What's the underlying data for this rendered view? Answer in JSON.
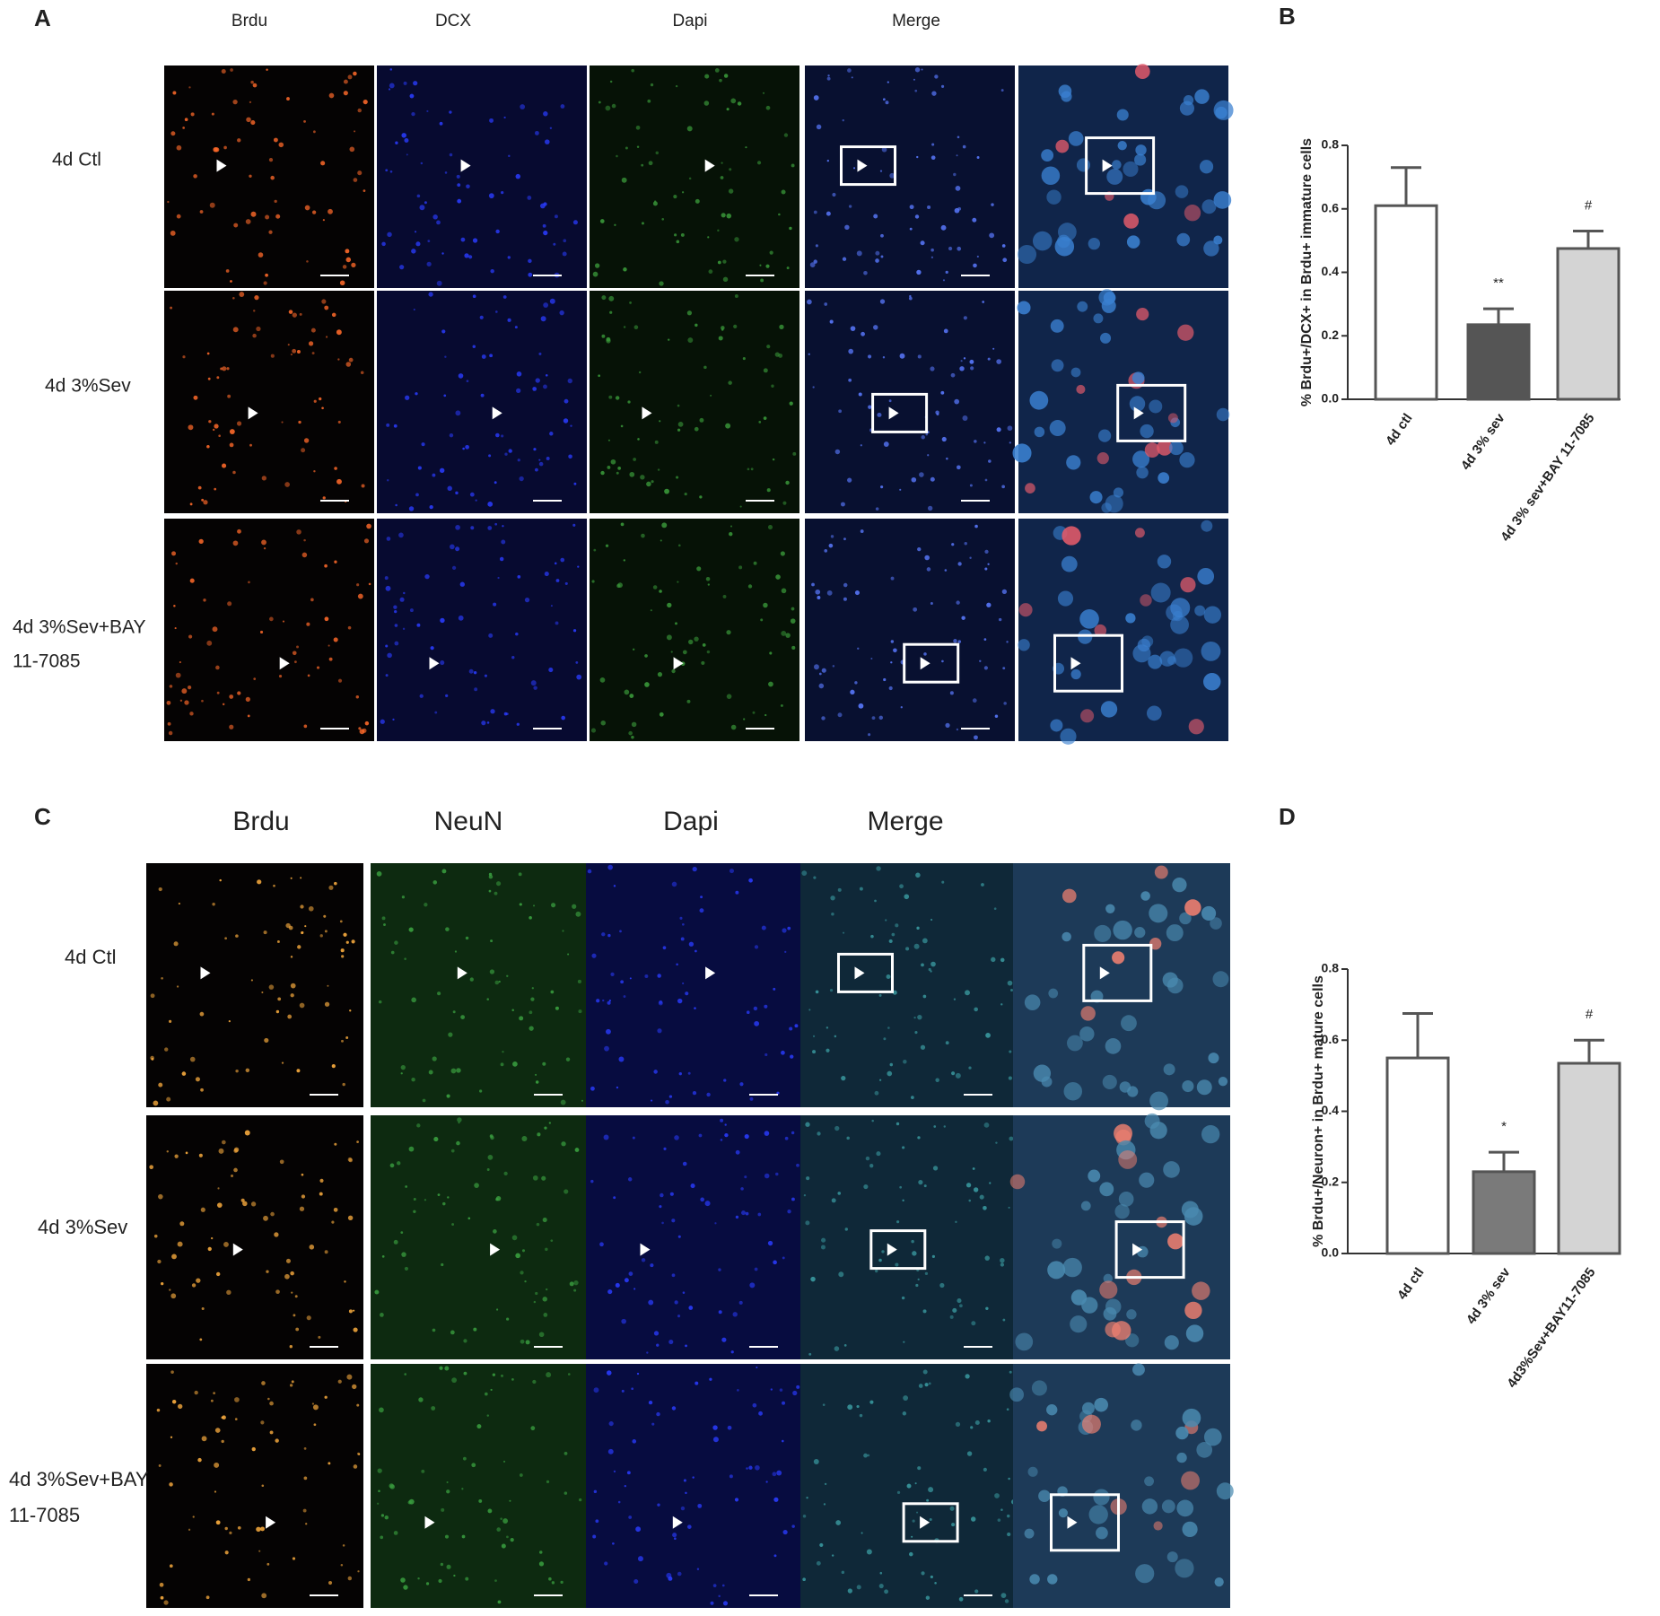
{
  "panels": {
    "A": {
      "letter": "A",
      "headers": [
        "Brdu",
        "DCX",
        "Dapi",
        "Merge"
      ],
      "rows": [
        [
          "4d Ctl"
        ],
        [
          "4d 3%Sev"
        ],
        [
          "4d 3%Sev+BAY",
          "11-7085"
        ]
      ]
    },
    "B": {
      "letter": "B"
    },
    "C": {
      "letter": "C",
      "headers": [
        "Brdu",
        "NeuN",
        "Dapi",
        "Merge"
      ],
      "rows": [
        [
          "4d Ctl"
        ],
        [
          "4d 3%Sev"
        ],
        [
          "4d 3%Sev+BAY",
          "11-7085"
        ]
      ]
    },
    "D": {
      "letter": "D"
    }
  },
  "chart_data": [
    {
      "type": "bar",
      "y_label": "% Brdu+/DCX+ in Brdu+ immature cells",
      "categories": [
        "4d ctl",
        "4d 3% sev",
        "4d 3% sev+BAY 11-7085"
      ],
      "values": [
        0.61,
        0.235,
        0.475
      ],
      "errors": [
        0.12,
        0.05,
        0.055
      ],
      "colors": [
        "#ffffff",
        "#555555",
        "#d4d4d4"
      ],
      "annotations": [
        null,
        "**",
        "#"
      ],
      "ylim": [
        0,
        0.8
      ],
      "yticks": [
        {
          "value": 0,
          "label": "0.0"
        },
        0.2,
        0.4,
        0.6,
        0.8
      ]
    },
    {
      "type": "bar",
      "y_label": "% Brdu+/Neuron+ in Brdu+ mature cells",
      "categories": [
        "4d ctl",
        "4d 3% sev",
        "4d3%Sev+BAY11-7085"
      ],
      "values": [
        0.55,
        0.23,
        0.535
      ],
      "errors": [
        0.125,
        0.055,
        0.065
      ],
      "colors": [
        "#ffffff",
        "#7a7a7a",
        "#d4d4d4"
      ],
      "annotations": [
        null,
        "*",
        "#"
      ],
      "ylim": [
        0,
        0.8
      ],
      "yticks": [
        {
          "value": 0,
          "label": "0.0"
        },
        0.2,
        0.4,
        0.6,
        0.8
      ]
    }
  ]
}
